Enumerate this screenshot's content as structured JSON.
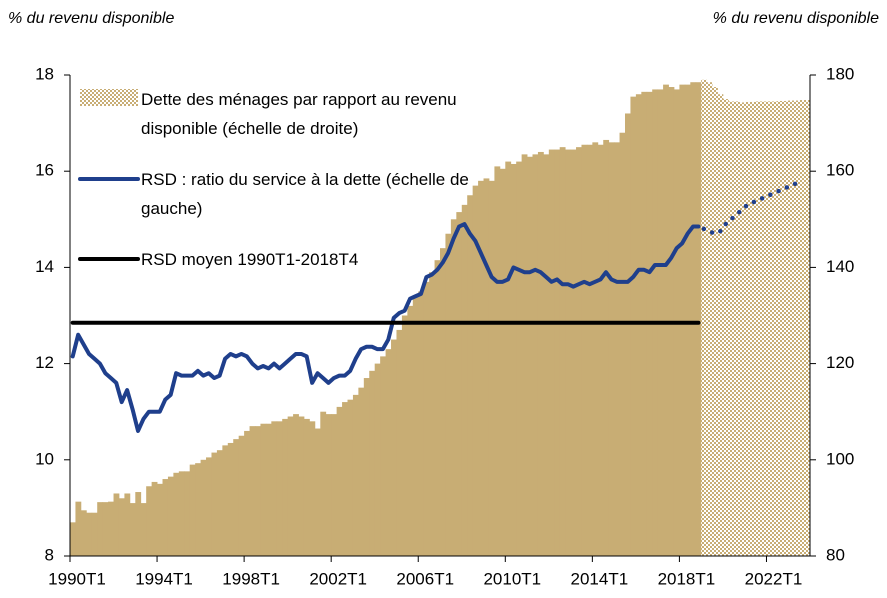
{
  "chart_data": {
    "type": "combo",
    "ylabel": "% du revenu disponible",
    "y2label": "% du revenu disponible",
    "ylim": [
      8,
      18
    ],
    "yticks": [
      8,
      10,
      12,
      14,
      16,
      18
    ],
    "y2lim": [
      80,
      180
    ],
    "y2ticks": [
      80,
      100,
      120,
      140,
      160,
      180
    ],
    "legend": "upper left",
    "categories": [
      "1990T1",
      null,
      null,
      null,
      null,
      null,
      null,
      null,
      null,
      null,
      null,
      null,
      null,
      null,
      null,
      null,
      "1994T1",
      null,
      null,
      null,
      null,
      null,
      null,
      null,
      null,
      null,
      null,
      null,
      null,
      null,
      null,
      null,
      "1998T1",
      null,
      null,
      null,
      null,
      null,
      null,
      null,
      null,
      null,
      null,
      null,
      null,
      null,
      null,
      null,
      "2002T1",
      null,
      null,
      null,
      null,
      null,
      null,
      null,
      null,
      null,
      null,
      null,
      null,
      null,
      null,
      null,
      "2006T1",
      null,
      null,
      null,
      null,
      null,
      null,
      null,
      null,
      null,
      null,
      null,
      null,
      null,
      null,
      null,
      "2010T1",
      null,
      null,
      null,
      null,
      null,
      null,
      null,
      null,
      null,
      null,
      null,
      null,
      null,
      null,
      null,
      "2014T1",
      null,
      null,
      null,
      null,
      null,
      null,
      null,
      null,
      null,
      null,
      null,
      null,
      null,
      null,
      null,
      "2018T1",
      null,
      null,
      null,
      null,
      null,
      null,
      null,
      null,
      null,
      null,
      null,
      null,
      null,
      null,
      null,
      "2022T1",
      null,
      null,
      null,
      null,
      null,
      null,
      null
    ],
    "series": [
      {
        "name": "Dette des ménages par rapport au revenu disponible (échelle de  droite)",
        "type": "bar",
        "axis": "y2",
        "color": "#c8ad74",
        "values": [
          87,
          91.3,
          89.5,
          89,
          89,
          91.2,
          91.2,
          91.3,
          93,
          92,
          93,
          91,
          93.3,
          91,
          94.5,
          95.4,
          95,
          96,
          96.5,
          97.3,
          97.6,
          97.6,
          99,
          99.3,
          100,
          100.5,
          101.5,
          102,
          103,
          103.5,
          104.3,
          105,
          106,
          107,
          107,
          107.5,
          107.5,
          108,
          108,
          108.5,
          109,
          109.5,
          109,
          108.5,
          108,
          106.5,
          110,
          109.5,
          109.5,
          111,
          112,
          112.5,
          113.5,
          115,
          117,
          118.5,
          120,
          121.5,
          123,
          125,
          127,
          130,
          132,
          134,
          135,
          137,
          139,
          141.5,
          144,
          147,
          150,
          151.5,
          153,
          155,
          157,
          158,
          158.5,
          158,
          161,
          160.5,
          162,
          161.5,
          162,
          163.5,
          163,
          163.5,
          164,
          163.5,
          164.5,
          164.5,
          165,
          164.5,
          164.5,
          165,
          165.5,
          165.5,
          166,
          165.5,
          166.5,
          166,
          166,
          168,
          172,
          175.5,
          176,
          176.5,
          176.5,
          177,
          177,
          178,
          177.5,
          177,
          178,
          178,
          178.5,
          178.5,
          null,
          null,
          null,
          null,
          null,
          null,
          null,
          null,
          null,
          null,
          null,
          null,
          null,
          null,
          null,
          null,
          null,
          null,
          null,
          null
        ],
        "forecast": [
          null,
          null,
          null,
          null,
          null,
          null,
          null,
          null,
          null,
          null,
          null,
          null,
          null,
          null,
          null,
          null,
          null,
          null,
          null,
          null,
          null,
          null,
          null,
          null,
          null,
          null,
          null,
          null,
          null,
          null,
          null,
          null,
          null,
          null,
          null,
          null,
          null,
          null,
          null,
          null,
          null,
          null,
          null,
          null,
          null,
          null,
          null,
          null,
          null,
          null,
          null,
          null,
          null,
          null,
          null,
          null,
          null,
          null,
          null,
          null,
          null,
          null,
          null,
          null,
          null,
          null,
          null,
          null,
          null,
          null,
          null,
          null,
          null,
          null,
          null,
          null,
          null,
          null,
          null,
          null,
          null,
          null,
          null,
          null,
          null,
          null,
          null,
          null,
          null,
          null,
          null,
          null,
          null,
          null,
          null,
          null,
          null,
          null,
          null,
          null,
          null,
          null,
          null,
          null,
          null,
          null,
          null,
          null,
          null,
          null,
          null,
          null,
          null,
          null,
          null,
          null,
          179,
          178.5,
          177.5,
          176,
          175,
          174.5,
          174.5,
          174.3,
          174.4,
          174.4,
          174.5,
          174.5,
          174.5,
          174.5,
          174.6,
          174.6,
          174.7,
          174.7,
          174.8,
          174.8
        ]
      },
      {
        "name": "RSD : ratio du service à la dette (échelle de gauche)",
        "type": "line",
        "axis": "y",
        "color": "#1f3f8c",
        "values": [
          12.15,
          12.6,
          12.4,
          12.2,
          12.1,
          12.0,
          11.8,
          11.7,
          11.6,
          11.2,
          11.45,
          11.05,
          10.6,
          10.85,
          11.0,
          11.0,
          11.0,
          11.25,
          11.35,
          11.8,
          11.75,
          11.75,
          11.75,
          11.85,
          11.75,
          11.8,
          11.7,
          11.75,
          12.1,
          12.2,
          12.15,
          12.2,
          12.15,
          12.0,
          11.9,
          11.95,
          11.9,
          12.0,
          11.9,
          12.0,
          12.1,
          12.2,
          12.2,
          12.15,
          11.6,
          11.8,
          11.7,
          11.6,
          11.7,
          11.75,
          11.75,
          11.85,
          12.1,
          12.3,
          12.35,
          12.35,
          12.3,
          12.3,
          12.5,
          12.95,
          13.05,
          13.1,
          13.35,
          13.4,
          13.45,
          13.8,
          13.85,
          13.95,
          14.1,
          14.3,
          14.6,
          14.85,
          14.9,
          14.7,
          14.55,
          14.3,
          14.05,
          13.8,
          13.7,
          13.7,
          13.75,
          14.0,
          13.95,
          13.9,
          13.9,
          13.95,
          13.9,
          13.8,
          13.7,
          13.75,
          13.65,
          13.65,
          13.6,
          13.65,
          13.7,
          13.65,
          13.7,
          13.75,
          13.9,
          13.75,
          13.7,
          13.7,
          13.7,
          13.8,
          13.95,
          13.95,
          13.9,
          14.05,
          14.05,
          14.05,
          14.2,
          14.4,
          14.5,
          14.7,
          14.85,
          14.85,
          null,
          null,
          null,
          null,
          null,
          null,
          null,
          null,
          null,
          null,
          null,
          null,
          null,
          null,
          null,
          null,
          null,
          null,
          null,
          null
        ],
        "forecast": [
          null,
          null,
          null,
          null,
          null,
          null,
          null,
          null,
          null,
          null,
          null,
          null,
          null,
          null,
          null,
          null,
          null,
          null,
          null,
          null,
          null,
          null,
          null,
          null,
          null,
          null,
          null,
          null,
          null,
          null,
          null,
          null,
          null,
          null,
          null,
          null,
          null,
          null,
          null,
          null,
          null,
          null,
          null,
          null,
          null,
          null,
          null,
          null,
          null,
          null,
          null,
          null,
          null,
          null,
          null,
          null,
          null,
          null,
          null,
          null,
          null,
          null,
          null,
          null,
          null,
          null,
          null,
          null,
          null,
          null,
          null,
          null,
          null,
          null,
          null,
          null,
          null,
          null,
          null,
          null,
          null,
          null,
          null,
          null,
          null,
          null,
          null,
          null,
          null,
          null,
          null,
          null,
          null,
          null,
          null,
          null,
          null,
          null,
          null,
          null,
          null,
          null,
          null,
          null,
          null,
          null,
          null,
          null,
          null,
          null,
          null,
          null,
          null,
          null,
          null,
          null,
          14.8,
          14.75,
          14.7,
          14.75,
          14.9,
          15.0,
          15.1,
          15.2,
          15.3,
          15.35,
          15.4,
          15.45,
          15.5,
          15.55,
          15.6,
          15.65,
          15.7,
          15.75,
          null,
          null
        ]
      },
      {
        "name": "RSD moyen 1990T1-2018T4",
        "type": "line",
        "axis": "y",
        "color": "#000000",
        "values": [
          12.85,
          12.85,
          12.85,
          12.85,
          12.85,
          12.85,
          12.85,
          12.85,
          12.85,
          12.85,
          12.85,
          12.85,
          12.85,
          12.85,
          12.85,
          12.85,
          12.85,
          12.85,
          12.85,
          12.85,
          12.85,
          12.85,
          12.85,
          12.85,
          12.85,
          12.85,
          12.85,
          12.85,
          12.85,
          12.85,
          12.85,
          12.85,
          12.85,
          12.85,
          12.85,
          12.85,
          12.85,
          12.85,
          12.85,
          12.85,
          12.85,
          12.85,
          12.85,
          12.85,
          12.85,
          12.85,
          12.85,
          12.85,
          12.85,
          12.85,
          12.85,
          12.85,
          12.85,
          12.85,
          12.85,
          12.85,
          12.85,
          12.85,
          12.85,
          12.85,
          12.85,
          12.85,
          12.85,
          12.85,
          12.85,
          12.85,
          12.85,
          12.85,
          12.85,
          12.85,
          12.85,
          12.85,
          12.85,
          12.85,
          12.85,
          12.85,
          12.85,
          12.85,
          12.85,
          12.85,
          12.85,
          12.85,
          12.85,
          12.85,
          12.85,
          12.85,
          12.85,
          12.85,
          12.85,
          12.85,
          12.85,
          12.85,
          12.85,
          12.85,
          12.85,
          12.85,
          12.85,
          12.85,
          12.85,
          12.85,
          12.85,
          12.85,
          12.85,
          12.85,
          12.85,
          12.85,
          12.85,
          12.85,
          12.85,
          12.85,
          12.85,
          12.85,
          12.85,
          12.85,
          12.85,
          12.85,
          null,
          null,
          null,
          null,
          null,
          null,
          null,
          null,
          null,
          null,
          null,
          null,
          null,
          null,
          null,
          null,
          null,
          null,
          null,
          null
        ]
      }
    ]
  }
}
